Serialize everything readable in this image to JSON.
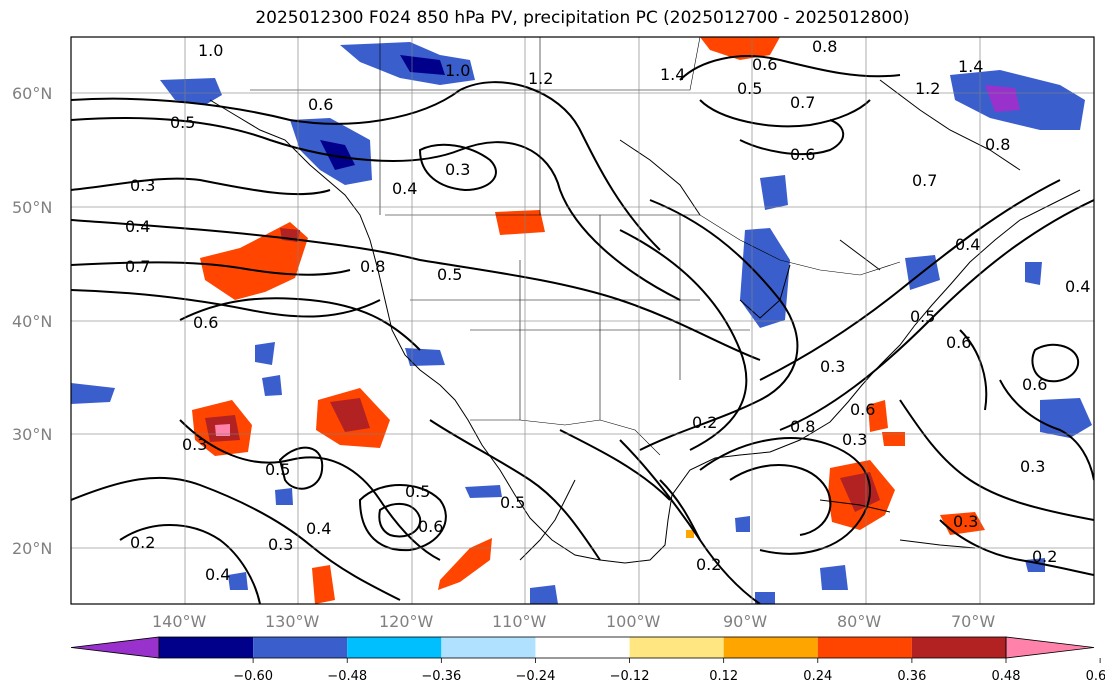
{
  "title": "2025012300 F024 850 hPa PV, precipitation PC (2025012700 - 2025012800)",
  "latitudes": [
    "60°N",
    "50°N",
    "40°N",
    "30°N",
    "20°N"
  ],
  "longitudes": [
    "140°W",
    "130°W",
    "120°W",
    "110°W",
    "100°W",
    "90°W",
    "80°W",
    "70°W"
  ],
  "colorbar": {
    "ticks": [
      "−0.60",
      "−0.48",
      "−0.36",
      "−0.24",
      "−0.12",
      "0.12",
      "0.24",
      "0.36",
      "0.48",
      "0.60"
    ],
    "colors": [
      "#9932cc",
      "#00008b",
      "#3a5fcd",
      "#00bfff",
      "#b0e2ff",
      "#ffffff",
      "#ffe680",
      "#ffa500",
      "#ff4500",
      "#b22222",
      "#ff82ab"
    ]
  },
  "contour_labels": [
    "1.0",
    "1.0",
    "1.2",
    "1.4",
    "0.6",
    "0.8",
    "0.5",
    "0.7",
    "0.6",
    "1.2",
    "1.4",
    "0.6",
    "0.5",
    "0.3",
    "0.4",
    "0.3",
    "0.4",
    "0.7",
    "0.6",
    "0.8",
    "0.5",
    "0.7",
    "0.8",
    "0.4",
    "0.6",
    "0.4",
    "0.5",
    "0.6",
    "0.3",
    "0.2",
    "0.8",
    "0.6",
    "0.3",
    "0.5",
    "0.5",
    "0.4",
    "0.3",
    "0.6",
    "0.5",
    "0.2",
    "0.4",
    "0.3",
    "0.2",
    "0.3",
    "0.2",
    "0.3"
  ]
}
